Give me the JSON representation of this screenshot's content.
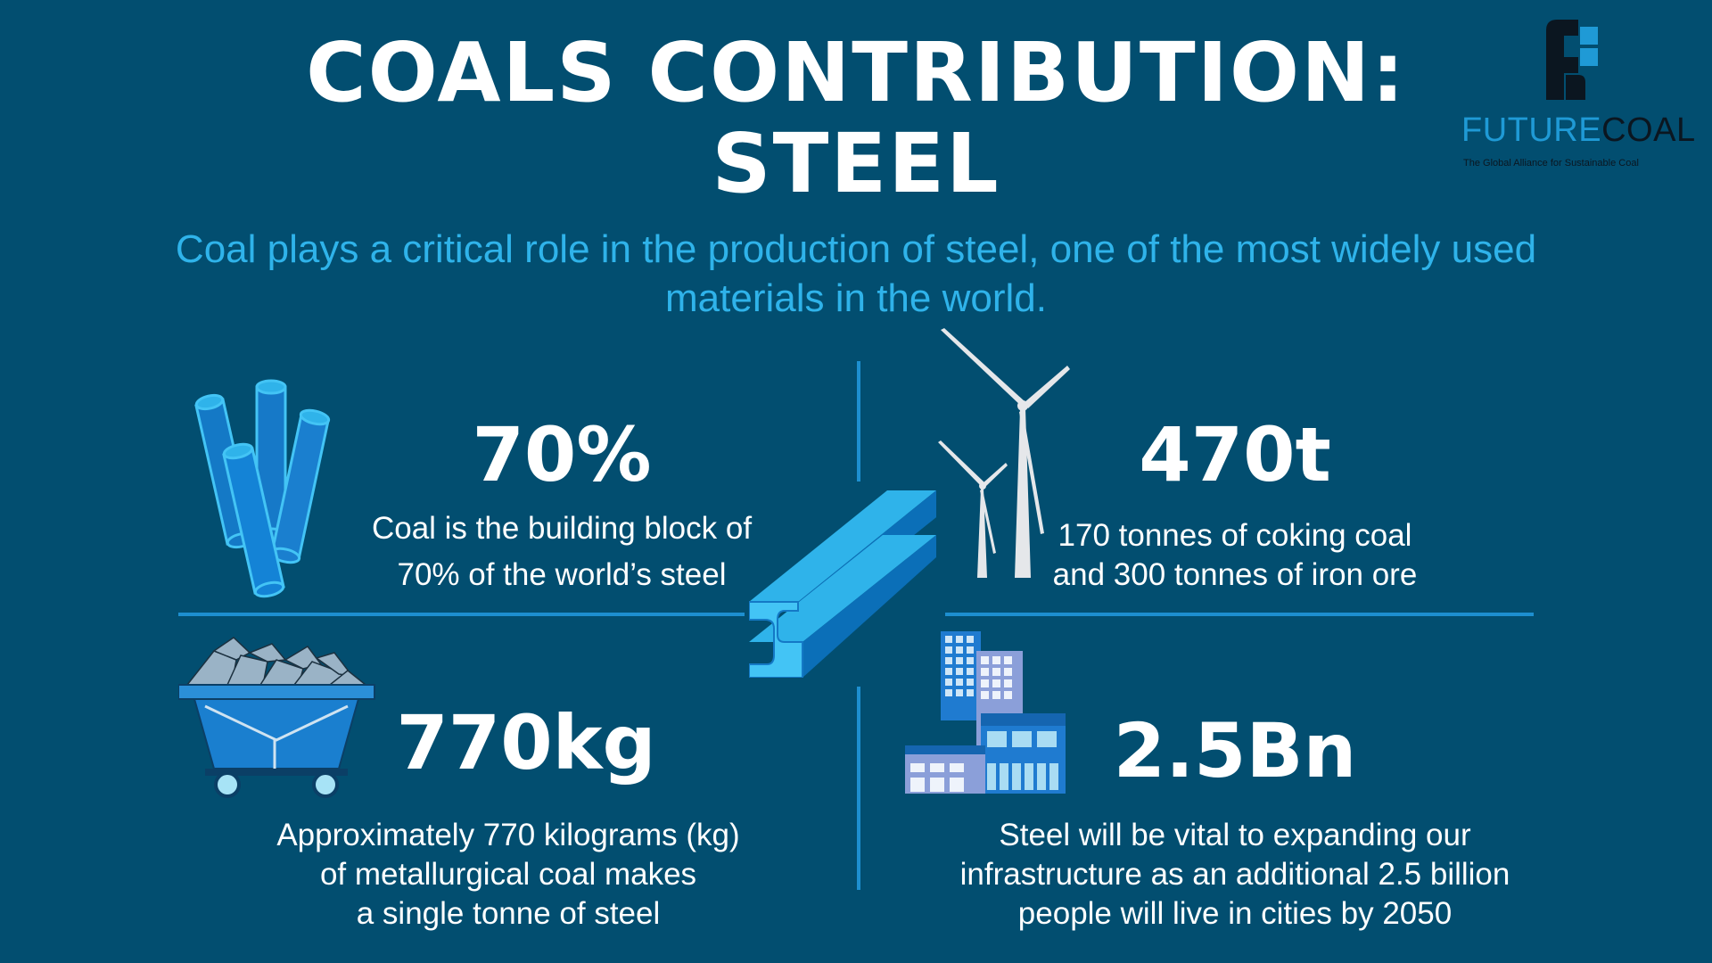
{
  "title": {
    "line1": "COALS CONTRIBUTION:",
    "line2": "STEEL"
  },
  "subtitle": {
    "line1": "Coal plays a critical role in the production of steel, one of the most widely used",
    "line2": "materials in the world."
  },
  "logo": {
    "name_part1": "FUTURE",
    "name_part2": "COAL",
    "tagline": "The Global Alliance for Sustainable Coal",
    "color_blue": "#1f9ad6",
    "color_dark": "#0b1620"
  },
  "stats": [
    {
      "value": "70%",
      "desc_line1": "Coal is the building block of",
      "desc_line2": "70% of the world’s steel",
      "icon": "steel-pipes-icon"
    },
    {
      "value": "470t",
      "desc_line1": "170 tonnes of coking coal",
      "desc_line2": "and 300 tonnes of iron ore",
      "icon": "wind-turbine-icon"
    },
    {
      "value": "770kg",
      "desc_line1": "Approximately 770 kilograms (kg)",
      "desc_line2": "of metallurgical coal makes",
      "desc_line3": "a single tonne of steel",
      "icon": "coal-cart-icon"
    },
    {
      "value": "2.5Bn",
      "desc_line1": "Steel will be vital to expanding our",
      "desc_line2": "infrastructure as an additional 2.5 billion",
      "desc_line3": "people will live in cities by 2050",
      "icon": "city-buildings-icon"
    }
  ],
  "center_icon": "steel-i-beam-icon",
  "colors": {
    "background": "#024e70",
    "accent": "#2fb3ea",
    "divider": "#1d8fd0"
  }
}
